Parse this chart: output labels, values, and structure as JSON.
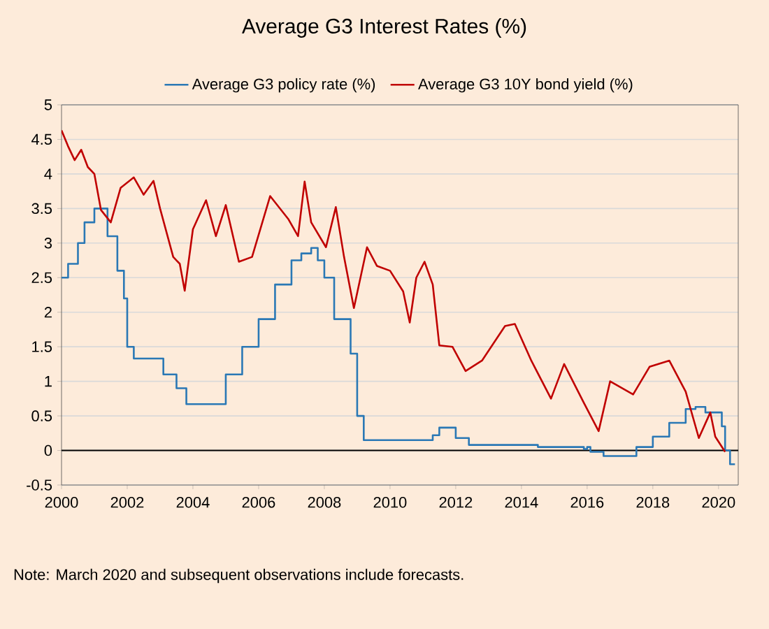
{
  "chart_data": {
    "type": "line",
    "title": "Average G3 Interest Rates (%)",
    "annotations": [
      "Note: March 2020 and subsequent observations include forecasts."
    ],
    "xlim": [
      2000,
      2020.6
    ],
    "xticks": [
      2000,
      2002,
      2004,
      2006,
      2008,
      2010,
      2012,
      2014,
      2016,
      2018,
      2020
    ],
    "ylim": [
      -0.5,
      5
    ],
    "yticks": [
      -0.5,
      0,
      0.5,
      1,
      1.5,
      2,
      2.5,
      3,
      3.5,
      4,
      4.5,
      5
    ],
    "grid": "y",
    "legend": "top",
    "marker": "none",
    "line_style": "solid",
    "ref_lines": [
      {
        "axis": "y",
        "value": 0,
        "color": "#000000"
      }
    ],
    "series": [
      {
        "name": "Average G3 policy rate (%)",
        "color": "#2a78b5",
        "type": "step",
        "x": [
          2000,
          2000.2,
          2000.5,
          2000.7,
          2001.0,
          2001.2,
          2001.4,
          2001.7,
          2001.9,
          2002.0,
          2002.2,
          2003.0,
          2003.1,
          2003.5,
          2003.8,
          2004.5,
          2005.0,
          2005.5,
          2006.0,
          2006.5,
          2007.0,
          2007.3,
          2007.6,
          2007.8,
          2008.0,
          2008.3,
          2008.6,
          2008.8,
          2009.0,
          2009.2,
          2011.0,
          2011.3,
          2011.5,
          2011.8,
          2012.0,
          2012.4,
          2014.5,
          2015.9,
          2016.0,
          2016.1,
          2016.5,
          2017.2,
          2017.5,
          2018.0,
          2018.5,
          2019.0,
          2019.3,
          2019.6,
          2019.9,
          2020.1,
          2020.2,
          2020.35,
          2020.5
        ],
        "values": [
          2.5,
          2.7,
          3.0,
          3.3,
          3.5,
          3.5,
          3.1,
          2.6,
          2.2,
          1.5,
          1.33,
          1.33,
          1.1,
          0.9,
          0.67,
          0.67,
          1.1,
          1.5,
          1.9,
          2.4,
          2.75,
          2.85,
          2.93,
          2.75,
          2.5,
          1.9,
          1.9,
          1.4,
          0.5,
          0.15,
          0.15,
          0.22,
          0.33,
          0.33,
          0.18,
          0.08,
          0.05,
          0.02,
          0.05,
          -0.02,
          -0.08,
          -0.08,
          0.05,
          0.2,
          0.4,
          0.6,
          0.63,
          0.55,
          0.55,
          0.35,
          0.0,
          -0.2,
          -0.2
        ]
      },
      {
        "name": "Average G3 10Y bond yield (%)",
        "color": "#c00000",
        "x": [
          2000,
          2000.2,
          2000.4,
          2000.6,
          2000.8,
          2001.0,
          2001.2,
          2001.5,
          2001.8,
          2002.2,
          2002.5,
          2002.8,
          2003.0,
          2003.4,
          2003.6,
          2003.75,
          2004.0,
          2004.4,
          2004.7,
          2005.0,
          2005.4,
          2005.8,
          2006.35,
          2006.9,
          2007.2,
          2007.4,
          2007.6,
          2008.05,
          2008.35,
          2008.6,
          2008.9,
          2009.3,
          2009.6,
          2010.0,
          2010.4,
          2010.6,
          2010.8,
          2011.05,
          2011.3,
          2011.5,
          2011.9,
          2012.3,
          2012.8,
          2013.5,
          2013.8,
          2014.3,
          2014.9,
          2015.3,
          2015.9,
          2016.35,
          2016.7,
          2017.4,
          2017.9,
          2018.5,
          2019.0,
          2019.4,
          2019.75,
          2019.9,
          2020.2
        ],
        "values": [
          4.63,
          4.4,
          4.2,
          4.35,
          4.1,
          4.0,
          3.48,
          3.3,
          3.8,
          3.95,
          3.7,
          3.9,
          3.5,
          2.8,
          2.7,
          2.31,
          3.2,
          3.62,
          3.1,
          3.55,
          2.73,
          2.8,
          3.68,
          3.35,
          3.1,
          3.89,
          3.3,
          2.94,
          3.52,
          2.8,
          2.06,
          2.94,
          2.67,
          2.6,
          2.3,
          1.85,
          2.5,
          2.73,
          2.4,
          1.52,
          1.5,
          1.15,
          1.3,
          1.8,
          1.83,
          1.3,
          0.75,
          1.25,
          0.69,
          0.28,
          1.0,
          0.81,
          1.21,
          1.3,
          0.85,
          0.18,
          0.55,
          0.2,
          -0.02
        ]
      }
    ]
  }
}
